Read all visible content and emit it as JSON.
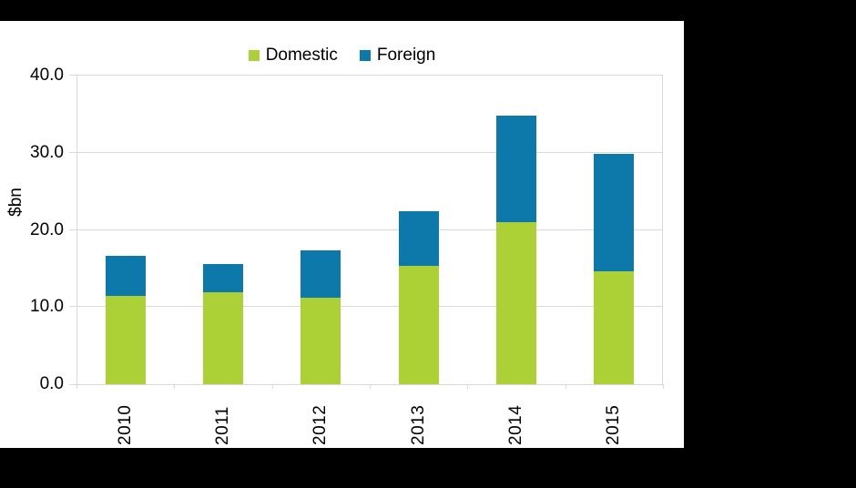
{
  "frame": {
    "background_color": "#000000",
    "panel_background_color": "#ffffff"
  },
  "chart_data": {
    "type": "bar",
    "stacked": true,
    "title": "",
    "categories": [
      "2010",
      "2011",
      "2012",
      "2013",
      "2014",
      "2015"
    ],
    "series": [
      {
        "name": "Domestic",
        "color": "#abd136",
        "values": [
          11.4,
          11.9,
          11.2,
          15.4,
          21.0,
          14.6
        ]
      },
      {
        "name": "Foreign",
        "color": "#0d79ab",
        "values": [
          5.2,
          3.7,
          6.1,
          7.0,
          13.8,
          15.3
        ]
      }
    ],
    "totals": [
      16.6,
      15.6,
      17.3,
      22.4,
      34.8,
      29.9
    ],
    "xlabel": "",
    "ylabel": "$bn",
    "ylim": [
      0,
      40
    ],
    "yticks": [
      0,
      10,
      20,
      30,
      40
    ],
    "ytick_labels": [
      "0.0",
      "10.0",
      "20.0",
      "30.0",
      "40.0"
    ],
    "grid": true,
    "gridline_color": "#d9d9d9",
    "text_color": "#000000",
    "legend_position": "top-center",
    "x_label_rotation": -90
  }
}
